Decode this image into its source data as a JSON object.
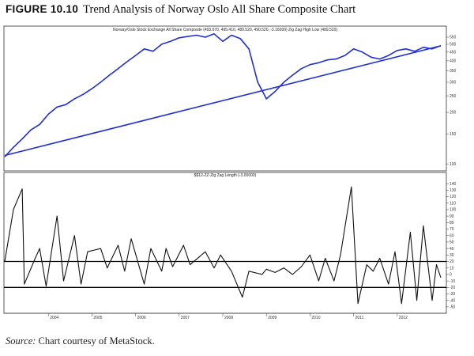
{
  "figure": {
    "number": "FIGURE 10.10",
    "title": "Trend Analysis of Norway Oslo All Share Composite Chart",
    "source_label": "Source:",
    "source_text": "Chart courtesy of MetaStock."
  },
  "colors": {
    "price": "#1f2fd6",
    "trendline": "#1f2fd6",
    "oscillator": "#111111",
    "frame": "#333333"
  },
  "chart_data": [
    {
      "type": "line",
      "title": "Norway/Oslo Stock Exchange All Share Composite (493.670, 495.410, 489.520, 490.520, -3.16000) Zig Zag High Low (489.520)",
      "scale": "log",
      "ylim": [
        95,
        580
      ],
      "y_ticks": [
        100,
        150,
        200,
        250,
        300,
        350,
        400,
        450,
        500,
        550
      ],
      "x_ticks": [
        "2004",
        "2005",
        "2006",
        "2007",
        "2008",
        "2009",
        "2010",
        "2011",
        "2012"
      ],
      "series": [
        {
          "x": [
            2003.0,
            2003.2,
            2003.4,
            2003.6,
            2003.8,
            2004.0,
            2004.2,
            2004.4,
            2004.6,
            2004.8,
            2005.0,
            2005.2,
            2005.4,
            2005.6,
            2005.8,
            2006.0,
            2006.2,
            2006.4,
            2006.6,
            2006.8,
            2007.0,
            2007.2,
            2007.4,
            2007.6,
            2007.8,
            2008.0,
            2008.2,
            2008.4,
            2008.6,
            2008.8,
            2009.0,
            2009.2,
            2009.4,
            2009.6,
            2009.8,
            2010.0,
            2010.2,
            2010.4,
            2010.6,
            2010.8,
            2011.0,
            2011.2,
            2011.4,
            2011.6,
            2011.8,
            2012.0,
            2012.2,
            2012.4,
            2012.6,
            2012.8,
            2013.0
          ],
          "values": [
            110,
            125,
            140,
            158,
            170,
            195,
            215,
            222,
            240,
            255,
            275,
            300,
            330,
            360,
            395,
            430,
            470,
            455,
            500,
            520,
            545,
            555,
            565,
            550,
            575,
            520,
            565,
            540,
            470,
            300,
            240,
            265,
            300,
            330,
            360,
            380,
            390,
            405,
            410,
            430,
            470,
            450,
            420,
            410,
            430,
            460,
            470,
            455,
            480,
            470,
            490
          ]
        },
        {
          "name": "trendline",
          "x": [
            2003.0,
            2013.0
          ],
          "values": [
            112,
            490
          ]
        }
      ]
    },
    {
      "type": "line",
      "title": "$$12-ZZ-Zig Zag Length (-3.00000)",
      "ylim": [
        -55,
        145
      ],
      "y_ticks": [
        -50,
        -40,
        -30,
        -20,
        -10,
        0,
        10,
        20,
        30,
        40,
        50,
        60,
        70,
        80,
        90,
        100,
        110,
        120,
        130,
        140
      ],
      "reference_lines": [
        20,
        -20
      ],
      "x_ticks": [
        "2004",
        "2005",
        "2006",
        "2007",
        "2008",
        "2009",
        "2010",
        "2011",
        "2012"
      ],
      "series": [
        {
          "x": [
            2003.0,
            2003.2,
            2003.4,
            2003.45,
            2003.7,
            2003.8,
            2003.95,
            2004.2,
            2004.35,
            2004.6,
            2004.75,
            2004.9,
            2005.2,
            2005.35,
            2005.6,
            2005.75,
            2005.9,
            2006.2,
            2006.35,
            2006.6,
            2006.7,
            2006.85,
            2007.1,
            2007.25,
            2007.6,
            2007.8,
            2007.95,
            2008.2,
            2008.45,
            2008.6,
            2008.9,
            2009.0,
            2009.2,
            2009.4,
            2009.6,
            2009.8,
            2010.0,
            2010.2,
            2010.35,
            2010.55,
            2010.7,
            2010.95,
            2011.1,
            2011.3,
            2011.45,
            2011.6,
            2011.8,
            2011.95,
            2012.1,
            2012.3,
            2012.45,
            2012.6,
            2012.8,
            2012.9,
            2013.0
          ],
          "values": [
            20,
            100,
            132,
            -15,
            25,
            40,
            -18,
            90,
            -10,
            60,
            -15,
            35,
            40,
            10,
            45,
            5,
            55,
            -15,
            40,
            5,
            40,
            12,
            45,
            15,
            35,
            10,
            30,
            5,
            -35,
            5,
            0,
            8,
            3,
            10,
            0,
            12,
            30,
            -10,
            25,
            -10,
            30,
            135,
            -45,
            15,
            5,
            25,
            -15,
            35,
            -45,
            65,
            -40,
            75,
            -40,
            15,
            -5
          ]
        }
      ]
    }
  ]
}
